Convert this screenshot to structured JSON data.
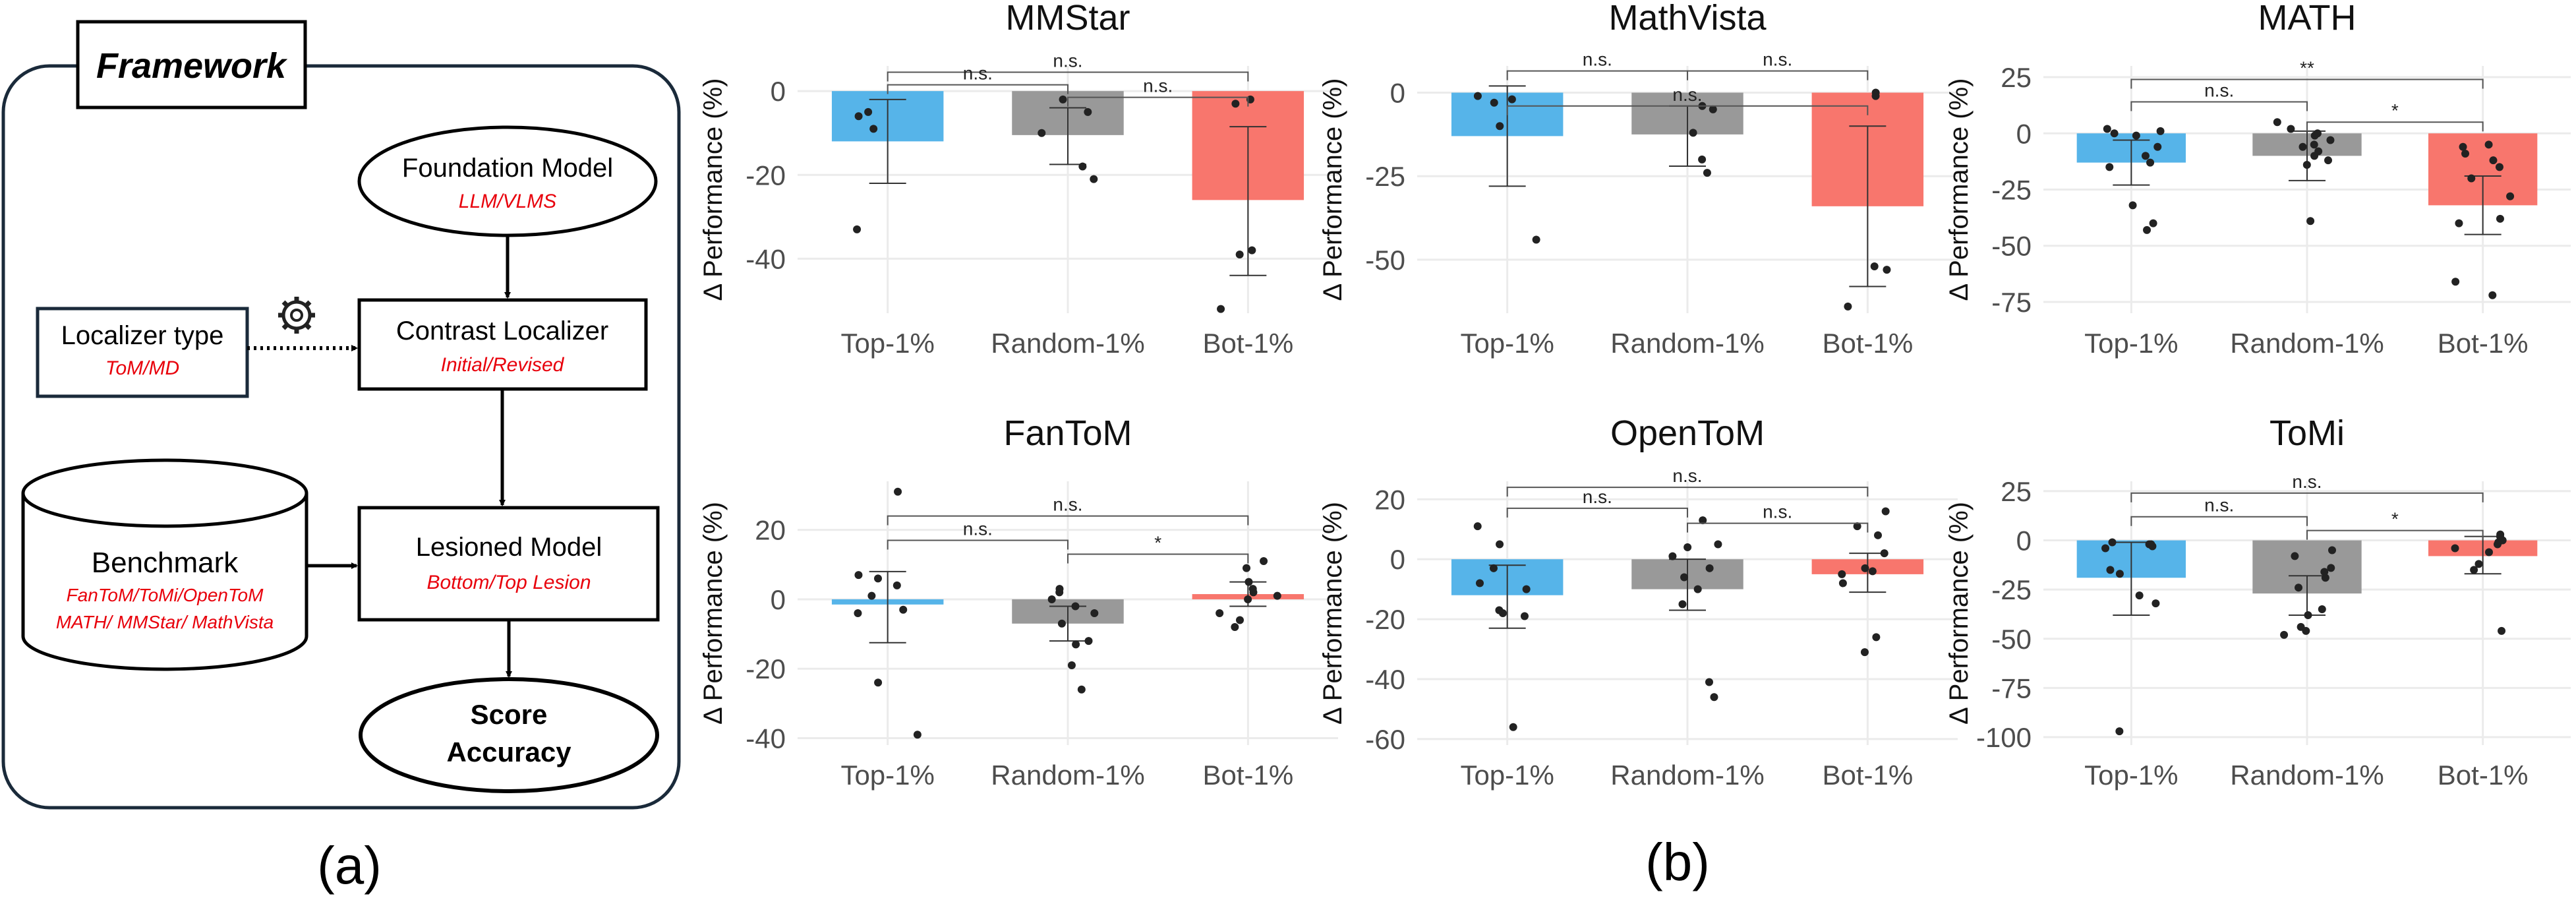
{
  "framework": {
    "title": "Framework",
    "foundation": {
      "title": "Foundation Model",
      "sub": "LLM/VLMS"
    },
    "localizer_type": {
      "title": "Localizer type",
      "sub": "ToM/MD"
    },
    "contrast": {
      "title": "Contrast Localizer",
      "sub": "Initial/Revised"
    },
    "benchmark": {
      "title": "Benchmark",
      "sub1": "FanToM/ToMi/OpenToM",
      "sub2": "MATH/ MMStar/ MathVista"
    },
    "lesioned": {
      "title": "Lesioned Model",
      "sub": "Bottom/Top Lesion"
    },
    "score": {
      "line1": "Score",
      "line2": "Accuracy"
    },
    "caption": "(a)"
  },
  "caption_b": "(b)",
  "colors": {
    "top": "#56B4E9",
    "random": "#999999",
    "bot": "#F8766D",
    "point": "#222222",
    "bracket": "#555555",
    "grid": "#ebebeb",
    "accent_text": "#e8000b"
  },
  "chart_data": [
    {
      "type": "bar",
      "title": "MMStar",
      "ylabel": "Δ Performance (%)",
      "categories": [
        "Top-1%",
        "Random-1%",
        "Bot-1%"
      ],
      "values": [
        -12,
        -10.5,
        -26
      ],
      "error": [
        [
          -22,
          -2
        ],
        [
          -17.5,
          -4
        ],
        [
          -44,
          -8.5
        ]
      ],
      "points": [
        [
          -33,
          -5,
          -6,
          -9
        ],
        [
          -21,
          -18,
          -10,
          -2,
          -5
        ],
        [
          -52,
          -38,
          -39,
          -3,
          -2
        ]
      ],
      "ylim": [
        -53,
        6
      ],
      "yticks": [
        -40,
        -20,
        0
      ],
      "ytick_labels": [
        "-40",
        "-20",
        "0"
      ],
      "brackets": [
        {
          "from": 0,
          "to": 2,
          "label": "n.s.",
          "y": 4.5
        },
        {
          "from": 0,
          "to": 1,
          "label": "n.s.",
          "y": 1.5
        },
        {
          "from": 1,
          "to": 2,
          "label": "n.s.",
          "y": -1.5
        }
      ]
    },
    {
      "type": "bar",
      "title": "MathVista",
      "ylabel": "Δ Performance (%)",
      "categories": [
        "Top-1%",
        "Random-1%",
        "Bot-1%"
      ],
      "values": [
        -13,
        -12.5,
        -34
      ],
      "error": [
        [
          -28,
          2
        ],
        [
          -22,
          -4
        ],
        [
          -58,
          -10
        ]
      ],
      "points": [
        [
          -44,
          -1,
          -10,
          -3,
          -2
        ],
        [
          -24,
          -12,
          -5,
          -4,
          -20
        ],
        [
          -64,
          -52,
          -53,
          0,
          -1
        ]
      ],
      "ylim": [
        -66,
        8
      ],
      "yticks": [
        -50,
        -25,
        0
      ],
      "ytick_labels": [
        "-50",
        "-25",
        "0"
      ],
      "brackets": [
        {
          "from": 0,
          "to": 2,
          "label": "n.s.",
          "y": -4
        },
        {
          "from": 0,
          "to": 1,
          "label": "n.s.",
          "y": 6.5
        },
        {
          "from": 1,
          "to": 2,
          "label": "n.s.",
          "y": 6.5
        }
      ]
    },
    {
      "type": "bar",
      "title": "MATH",
      "ylabel": "Δ Performance (%)",
      "categories": [
        "Top-1%",
        "Random-1%",
        "Bot-1%"
      ],
      "values": [
        -13,
        -10,
        -32
      ],
      "error": [
        [
          -23,
          -3
        ],
        [
          -21,
          1
        ],
        [
          -45,
          -19
        ]
      ],
      "points": [
        [
          -43,
          -40,
          -32,
          -15,
          -13,
          -6,
          -1,
          0,
          1,
          2,
          -10
        ],
        [
          -39,
          -12,
          -14,
          -10,
          -6,
          -5,
          -3,
          0,
          2,
          5,
          -8,
          -1
        ],
        [
          -72,
          -66,
          -40,
          -38,
          -28,
          -15,
          -9,
          -6,
          -5,
          -12,
          -20
        ]
      ],
      "ylim": [
        -80,
        30
      ],
      "yticks": [
        -75,
        -50,
        -25,
        0,
        25
      ],
      "ytick_labels": [
        "-75",
        "-50",
        "-25",
        "0",
        "25"
      ],
      "brackets": [
        {
          "from": 0,
          "to": 2,
          "label": "**",
          "y": 24
        },
        {
          "from": 0,
          "to": 1,
          "label": "n.s.",
          "y": 14
        },
        {
          "from": 1,
          "to": 2,
          "label": "*",
          "y": 5
        }
      ]
    },
    {
      "type": "bar",
      "title": "FanToM",
      "ylabel": "Δ Performance (%)",
      "categories": [
        "Top-1%",
        "Random-1%",
        "Bot-1%"
      ],
      "values": [
        -1.5,
        -7,
        1.5
      ],
      "error": [
        [
          -12.5,
          8
        ],
        [
          -12,
          -2
        ],
        [
          -2,
          5
        ]
      ],
      "points": [
        [
          -39,
          -24,
          -4,
          -3,
          1,
          4,
          6,
          7,
          31
        ],
        [
          -26,
          -19,
          -13,
          -12,
          -7,
          -4,
          -2,
          0,
          2,
          3
        ],
        [
          -8,
          -6,
          -4,
          0,
          1,
          2,
          3,
          5,
          9,
          11
        ]
      ],
      "ylim": [
        -42,
        34
      ],
      "yticks": [
        -40,
        -20,
        0,
        20
      ],
      "ytick_labels": [
        "-40",
        "-20",
        "0",
        "20"
      ],
      "brackets": [
        {
          "from": 0,
          "to": 2,
          "label": "n.s.",
          "y": 24
        },
        {
          "from": 0,
          "to": 1,
          "label": "n.s.",
          "y": 17
        },
        {
          "from": 1,
          "to": 2,
          "label": "*",
          "y": 13
        }
      ]
    },
    {
      "type": "bar",
      "title": "OpenToM",
      "ylabel": "Δ Performance (%)",
      "categories": [
        "Top-1%",
        "Random-1%",
        "Bot-1%"
      ],
      "values": [
        -12,
        -10,
        -5
      ],
      "error": [
        [
          -23,
          -2
        ],
        [
          -17,
          0
        ],
        [
          -11,
          2
        ]
      ],
      "points": [
        [
          -56,
          -19,
          -18,
          -17,
          -10,
          -8,
          -3,
          5,
          11
        ],
        [
          -46,
          -41,
          -15,
          -10,
          -6,
          -3,
          1,
          4,
          5,
          13
        ],
        [
          -31,
          -26,
          -8,
          -5,
          -4,
          -3,
          2,
          8,
          11,
          16
        ]
      ],
      "ylim": [
        -62,
        26
      ],
      "yticks": [
        -60,
        -40,
        -20,
        0,
        20
      ],
      "ytick_labels": [
        "-60",
        "-40",
        "-20",
        "0",
        "20"
      ],
      "brackets": [
        {
          "from": 0,
          "to": 2,
          "label": "n.s.",
          "y": 24
        },
        {
          "from": 0,
          "to": 1,
          "label": "n.s.",
          "y": 17
        },
        {
          "from": 1,
          "to": 2,
          "label": "n.s.",
          "y": 12
        }
      ]
    },
    {
      "type": "bar",
      "title": "ToMi",
      "ylabel": "Δ Performance (%)",
      "categories": [
        "Top-1%",
        "Random-1%",
        "Bot-1%"
      ],
      "values": [
        -19,
        -27,
        -8
      ],
      "error": [
        [
          -38,
          -1
        ],
        [
          -38,
          -18
        ],
        [
          -17,
          2
        ]
      ],
      "points": [
        [
          -97,
          -32,
          -28,
          -17,
          -15,
          -2,
          -1,
          -2,
          -3,
          -4
        ],
        [
          -48,
          -46,
          -44,
          -38,
          -35,
          -24,
          -19,
          -16,
          -14,
          -8,
          -5
        ],
        [
          -46,
          -15,
          -12,
          -6,
          -4,
          -2,
          -1,
          2,
          3,
          0
        ]
      ],
      "ylim": [
        -104,
        30
      ],
      "yticks": [
        -100,
        -75,
        -50,
        -25,
        0,
        25
      ],
      "ytick_labels": [
        "-100",
        "-75",
        "-50",
        "-25",
        "0",
        "25"
      ],
      "brackets": [
        {
          "from": 0,
          "to": 2,
          "label": "n.s.",
          "y": 24
        },
        {
          "from": 0,
          "to": 1,
          "label": "n.s.",
          "y": 12
        },
        {
          "from": 1,
          "to": 2,
          "label": "*",
          "y": 5
        }
      ]
    }
  ]
}
